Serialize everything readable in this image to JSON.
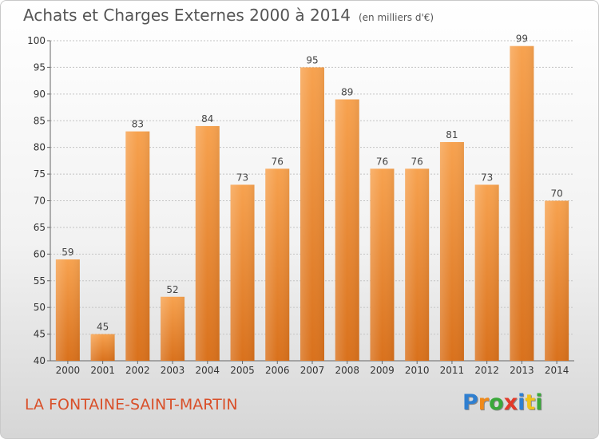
{
  "chart_data": {
    "type": "bar",
    "title": "Achats et Charges Externes 2000 à 2014",
    "unit": "(en milliers d'€)",
    "categories": [
      "2000",
      "2001",
      "2002",
      "2003",
      "2004",
      "2005",
      "2006",
      "2007",
      "2008",
      "2009",
      "2010",
      "2011",
      "2012",
      "2013",
      "2014"
    ],
    "values": [
      59,
      45,
      83,
      52,
      84,
      73,
      76,
      95,
      89,
      76,
      76,
      81,
      73,
      99,
      70
    ],
    "ylim": [
      40,
      100
    ],
    "yticks": [
      40,
      45,
      50,
      55,
      60,
      65,
      70,
      75,
      80,
      85,
      90,
      95,
      100
    ],
    "grid": true,
    "bar_color_top": "#f7a24f",
    "bar_color_bottom": "#d9711c"
  },
  "place_name": "LA FONTAINE-SAINT-MARTIN",
  "logo": {
    "letters": [
      "P",
      "r",
      "o",
      "x",
      "i",
      "t",
      "i"
    ],
    "colors": [
      "#2f7fd0",
      "#f08a1a",
      "#3aa83a",
      "#e23a2a",
      "#2f7fd0",
      "#f0c21a",
      "#3aa83a"
    ]
  }
}
